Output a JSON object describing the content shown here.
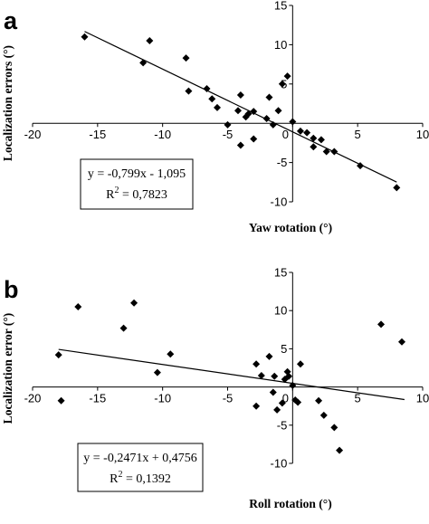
{
  "chart_data": [
    {
      "panel_label": "a",
      "type": "scatter",
      "xlabel": "Yaw rotation (°)",
      "ylabel": "Localization errors (°)",
      "xlim": [
        -20,
        10
      ],
      "ylim": [
        -10,
        15
      ],
      "xticks": [
        -20,
        -15,
        -10,
        -5,
        0,
        5,
        10
      ],
      "yticks": [
        -10,
        -5,
        5,
        10,
        15
      ],
      "equation": "y = -0,799x - 1,095",
      "r2_label": "R",
      "r2_sup": "2",
      "r2_value": " = 0,7823",
      "trendline": {
        "slope": -0.799,
        "intercept": -1.095,
        "x_range": [
          -16,
          8
        ]
      },
      "points": [
        [
          -16,
          11
        ],
        [
          -11.5,
          7.7
        ],
        [
          -11,
          10.5
        ],
        [
          -8.2,
          8.3
        ],
        [
          -8,
          4.1
        ],
        [
          -6.6,
          4.4
        ],
        [
          -6.2,
          3.1
        ],
        [
          -5.8,
          2.0
        ],
        [
          -5.0,
          -0.2
        ],
        [
          -4.2,
          1.6
        ],
        [
          -4.0,
          3.6
        ],
        [
          -4.0,
          -2.8
        ],
        [
          -3.6,
          0.8
        ],
        [
          -3.4,
          1.2
        ],
        [
          -3.0,
          1.5
        ],
        [
          -3.0,
          -2.0
        ],
        [
          -2.0,
          0.6
        ],
        [
          -1.8,
          3.3
        ],
        [
          -1.5,
          -0.2
        ],
        [
          -1.1,
          1.6
        ],
        [
          -0.8,
          5.0
        ],
        [
          -0.4,
          6.0
        ],
        [
          0,
          0.2
        ],
        [
          0.6,
          -1.0
        ],
        [
          1.1,
          -1.2
        ],
        [
          1.6,
          -1.9
        ],
        [
          1.6,
          -3.0
        ],
        [
          2.2,
          -2.1
        ],
        [
          2.6,
          -3.6
        ],
        [
          3.2,
          -3.6
        ],
        [
          5.2,
          -5.4
        ],
        [
          8,
          -8.2
        ]
      ]
    },
    {
      "panel_label": "b",
      "type": "scatter",
      "xlabel": "Roll rotation (°)",
      "ylabel": "Localization error (°)",
      "xlim": [
        -20,
        10
      ],
      "ylim": [
        -10,
        15
      ],
      "xticks": [
        -20,
        -15,
        -10,
        -5,
        0,
        5,
        10
      ],
      "yticks": [
        -10,
        -5,
        5,
        10,
        15
      ],
      "equation": "y = -0,2471x + 0,4756",
      "r2_label": "R",
      "r2_sup": "2",
      "r2_value": " = 0,1392",
      "trendline": {
        "slope": -0.2471,
        "intercept": 0.4756,
        "x_range": [
          -18,
          8.6
        ]
      },
      "points": [
        [
          -18,
          4.2
        ],
        [
          -17.8,
          -1.8
        ],
        [
          -16.5,
          10.5
        ],
        [
          -13,
          7.7
        ],
        [
          -12.2,
          11
        ],
        [
          -10.4,
          1.9
        ],
        [
          -9.4,
          4.3
        ],
        [
          -2.8,
          3.0
        ],
        [
          -2.8,
          -2.5
        ],
        [
          -2.4,
          1.5
        ],
        [
          -1.8,
          4.0
        ],
        [
          -1.5,
          -0.7
        ],
        [
          -1.4,
          1.4
        ],
        [
          -1.2,
          -3.0
        ],
        [
          -0.8,
          -2.1
        ],
        [
          -0.6,
          1.0
        ],
        [
          -0.4,
          2.0
        ],
        [
          -0.3,
          1.4
        ],
        [
          0,
          0.2
        ],
        [
          0.2,
          -1.7
        ],
        [
          0.4,
          -2.0
        ],
        [
          0.6,
          3.0
        ],
        [
          2.0,
          -1.8
        ],
        [
          2.4,
          -3.7
        ],
        [
          3.2,
          -5.3
        ],
        [
          3.6,
          -8.3
        ],
        [
          6.8,
          8.2
        ],
        [
          8.4,
          5.9
        ]
      ]
    }
  ]
}
